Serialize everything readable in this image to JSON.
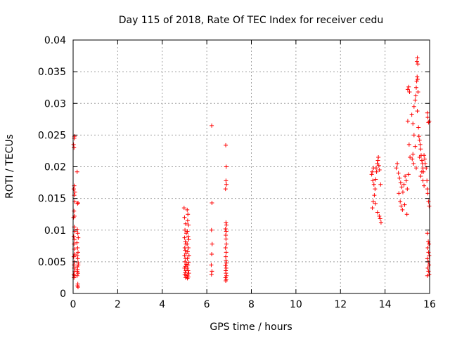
{
  "chart_data": {
    "type": "scatter",
    "title": "Day 115 of 2018, Rate Of TEC Index for receiver cedu",
    "xlabel": "GPS time / hours",
    "ylabel": "ROTI / TECUs",
    "xlim": [
      0,
      16
    ],
    "ylim": [
      0,
      0.04
    ],
    "grid": true,
    "marker": "+",
    "x_ticks": [
      0,
      2,
      4,
      6,
      8,
      10,
      12,
      14,
      16
    ],
    "x_tick_labels": [
      "0",
      "2",
      "4",
      "6",
      "8",
      "10",
      "12",
      "14",
      "16"
    ],
    "y_ticks": [
      0,
      0.005,
      0.01,
      0.015,
      0.02,
      0.025,
      0.03,
      0.035,
      0.04
    ],
    "y_tick_labels": [
      "0",
      "0.005",
      "0.01",
      "0.015",
      "0.02",
      "0.025",
      "0.03",
      "0.035",
      "0.04"
    ],
    "color": "#ff0000",
    "series": [
      {
        "name": "ROTI",
        "points": [
          [
            0.02,
            0.0235
          ],
          [
            0.04,
            0.023
          ],
          [
            0.05,
            0.0245
          ],
          [
            0.06,
            0.0248
          ],
          [
            0.03,
            0.0165
          ],
          [
            0.05,
            0.0155
          ],
          [
            0.07,
            0.0145
          ],
          [
            0.04,
            0.013
          ],
          [
            0.06,
            0.0122
          ],
          [
            0.05,
            0.0105
          ],
          [
            0.07,
            0.0098
          ],
          [
            0.03,
            0.009
          ],
          [
            0.06,
            0.0085
          ],
          [
            0.04,
            0.0078
          ],
          [
            0.05,
            0.007
          ],
          [
            0.07,
            0.0062
          ],
          [
            0.03,
            0.0058
          ],
          [
            0.06,
            0.005
          ],
          [
            0.04,
            0.0045
          ],
          [
            0.05,
            0.004
          ],
          [
            0.07,
            0.0035
          ],
          [
            0.03,
            0.003
          ],
          [
            0.06,
            0.0028
          ],
          [
            0.04,
            0.0025
          ],
          [
            0.05,
            0.017
          ],
          [
            0.08,
            0.016
          ],
          [
            0.02,
            0.012
          ],
          [
            0.18,
            0.0192
          ],
          [
            0.2,
            0.0142
          ],
          [
            0.22,
            0.0143
          ],
          [
            0.19,
            0.0101
          ],
          [
            0.21,
            0.0095
          ],
          [
            0.23,
            0.0088
          ],
          [
            0.17,
            0.008
          ],
          [
            0.2,
            0.0072
          ],
          [
            0.22,
            0.0065
          ],
          [
            0.18,
            0.006
          ],
          [
            0.21,
            0.0055
          ],
          [
            0.23,
            0.0048
          ],
          [
            0.19,
            0.0042
          ],
          [
            0.2,
            0.0038
          ],
          [
            0.22,
            0.0032
          ],
          [
            0.18,
            0.0028
          ],
          [
            0.21,
            0.0015
          ],
          [
            0.2,
            0.0012
          ],
          [
            0.22,
            0.001
          ],
          [
            0.19,
            0.0035
          ],
          [
            0.23,
            0.0045
          ],
          [
            4.98,
            0.0135
          ],
          [
            5.0,
            0.012
          ],
          [
            5.05,
            0.011
          ],
          [
            5.02,
            0.01
          ],
          [
            5.08,
            0.0095
          ],
          [
            5.0,
            0.0088
          ],
          [
            5.04,
            0.0082
          ],
          [
            5.06,
            0.0078
          ],
          [
            5.01,
            0.0072
          ],
          [
            5.03,
            0.0068
          ],
          [
            5.07,
            0.0063
          ],
          [
            5.0,
            0.006
          ],
          [
            5.05,
            0.0055
          ],
          [
            5.02,
            0.005
          ],
          [
            5.08,
            0.0046
          ],
          [
            5.04,
            0.0043
          ],
          [
            5.0,
            0.004
          ],
          [
            5.06,
            0.0036
          ],
          [
            5.03,
            0.0033
          ],
          [
            5.01,
            0.003
          ],
          [
            5.07,
            0.0028
          ],
          [
            5.05,
            0.0025
          ],
          [
            5.12,
            0.0132
          ],
          [
            5.15,
            0.0125
          ],
          [
            5.14,
            0.0115
          ],
          [
            5.18,
            0.0108
          ],
          [
            5.13,
            0.0098
          ],
          [
            5.16,
            0.009
          ],
          [
            5.19,
            0.0085
          ],
          [
            5.12,
            0.0078
          ],
          [
            5.17,
            0.0072
          ],
          [
            5.14,
            0.0066
          ],
          [
            5.2,
            0.006
          ],
          [
            5.13,
            0.0055
          ],
          [
            5.18,
            0.0049
          ],
          [
            5.15,
            0.0045
          ],
          [
            5.12,
            0.004
          ],
          [
            5.16,
            0.0036
          ],
          [
            5.19,
            0.0032
          ],
          [
            5.14,
            0.0029
          ],
          [
            5.17,
            0.0026
          ],
          [
            5.13,
            0.0024
          ],
          [
            6.22,
            0.0265
          ],
          [
            6.23,
            0.0143
          ],
          [
            6.21,
            0.01
          ],
          [
            6.24,
            0.0078
          ],
          [
            6.22,
            0.0062
          ],
          [
            6.2,
            0.0045
          ],
          [
            6.23,
            0.0035
          ],
          [
            6.21,
            0.003
          ],
          [
            6.85,
            0.0234
          ],
          [
            6.87,
            0.02
          ],
          [
            6.86,
            0.0178
          ],
          [
            6.88,
            0.0172
          ],
          [
            6.84,
            0.0165
          ],
          [
            6.86,
            0.0112
          ],
          [
            6.88,
            0.0108
          ],
          [
            6.84,
            0.0102
          ],
          [
            6.87,
            0.0098
          ],
          [
            6.85,
            0.0092
          ],
          [
            6.86,
            0.0086
          ],
          [
            6.88,
            0.0078
          ],
          [
            6.84,
            0.0072
          ],
          [
            6.87,
            0.0065
          ],
          [
            6.85,
            0.0058
          ],
          [
            6.86,
            0.0052
          ],
          [
            6.88,
            0.0048
          ],
          [
            6.84,
            0.0044
          ],
          [
            6.87,
            0.004
          ],
          [
            6.85,
            0.0036
          ],
          [
            6.86,
            0.0032
          ],
          [
            6.88,
            0.0028
          ],
          [
            6.84,
            0.0025
          ],
          [
            6.87,
            0.0022
          ],
          [
            6.85,
            0.002
          ],
          [
            13.4,
            0.0188
          ],
          [
            13.42,
            0.0192
          ],
          [
            13.45,
            0.0178
          ],
          [
            13.48,
            0.0198
          ],
          [
            13.5,
            0.0172
          ],
          [
            13.55,
            0.0165
          ],
          [
            13.58,
            0.018
          ],
          [
            13.65,
            0.0205
          ],
          [
            13.68,
            0.021
          ],
          [
            13.7,
            0.0215
          ],
          [
            13.72,
            0.0202
          ],
          [
            13.75,
            0.0195
          ],
          [
            13.62,
            0.0192
          ],
          [
            13.6,
            0.0198
          ],
          [
            13.8,
            0.0172
          ],
          [
            13.52,
            0.0155
          ],
          [
            13.47,
            0.0145
          ],
          [
            13.43,
            0.0135
          ],
          [
            13.57,
            0.0142
          ],
          [
            13.66,
            0.0128
          ],
          [
            13.74,
            0.0122
          ],
          [
            13.78,
            0.0118
          ],
          [
            13.82,
            0.0112
          ],
          [
            14.5,
            0.0198
          ],
          [
            14.55,
            0.0205
          ],
          [
            14.6,
            0.019
          ],
          [
            14.65,
            0.0182
          ],
          [
            14.7,
            0.0175
          ],
          [
            14.75,
            0.0168
          ],
          [
            14.8,
            0.016
          ],
          [
            14.85,
            0.0172
          ],
          [
            14.9,
            0.0185
          ],
          [
            14.95,
            0.0178
          ],
          [
            15.0,
            0.0165
          ],
          [
            14.62,
            0.0158
          ],
          [
            14.68,
            0.0145
          ],
          [
            14.72,
            0.0138
          ],
          [
            14.78,
            0.0132
          ],
          [
            14.88,
            0.014
          ],
          [
            14.98,
            0.0125
          ],
          [
            15.05,
            0.0188
          ],
          [
            15.02,
            0.0272
          ],
          [
            15.08,
            0.0235
          ],
          [
            15.12,
            0.0215
          ],
          [
            15.02,
            0.0322
          ],
          [
            15.06,
            0.0326
          ],
          [
            15.1,
            0.0318
          ],
          [
            15.2,
            0.0282
          ],
          [
            15.25,
            0.0268
          ],
          [
            15.3,
            0.0295
          ],
          [
            15.35,
            0.0305
          ],
          [
            15.38,
            0.0312
          ],
          [
            15.4,
            0.0325
          ],
          [
            15.42,
            0.0335
          ],
          [
            15.44,
            0.0342
          ],
          [
            15.46,
            0.0338
          ],
          [
            15.48,
            0.0318
          ],
          [
            15.45,
            0.0288
          ],
          [
            15.5,
            0.0262
          ],
          [
            15.52,
            0.0248
          ],
          [
            15.55,
            0.0242
          ],
          [
            15.58,
            0.0235
          ],
          [
            15.6,
            0.0228
          ],
          [
            15.62,
            0.0218
          ],
          [
            15.65,
            0.021
          ],
          [
            15.68,
            0.0205
          ],
          [
            15.7,
            0.0198
          ],
          [
            15.72,
            0.0192
          ],
          [
            15.43,
            0.0366
          ],
          [
            15.45,
            0.0372
          ],
          [
            15.47,
            0.0362
          ],
          [
            15.3,
            0.025
          ],
          [
            15.35,
            0.0232
          ],
          [
            15.25,
            0.022
          ],
          [
            15.22,
            0.0212
          ],
          [
            15.28,
            0.0205
          ],
          [
            15.4,
            0.0198
          ],
          [
            15.55,
            0.0215
          ],
          [
            15.75,
            0.0218
          ],
          [
            15.78,
            0.0212
          ],
          [
            15.8,
            0.0205
          ],
          [
            15.85,
            0.0198
          ],
          [
            15.88,
            0.0178
          ],
          [
            15.9,
            0.0165
          ],
          [
            15.6,
            0.0185
          ],
          [
            15.65,
            0.0192
          ],
          [
            15.7,
            0.0178
          ],
          [
            15.75,
            0.017
          ],
          [
            15.9,
            0.0285
          ],
          [
            15.92,
            0.0278
          ],
          [
            15.95,
            0.027
          ],
          [
            15.98,
            0.0272
          ],
          [
            15.92,
            0.0158
          ],
          [
            15.95,
            0.0145
          ],
          [
            15.98,
            0.0138
          ],
          [
            15.9,
            0.0095
          ],
          [
            15.94,
            0.0082
          ],
          [
            15.97,
            0.0078
          ],
          [
            15.92,
            0.0072
          ],
          [
            15.95,
            0.0065
          ],
          [
            15.98,
            0.006
          ],
          [
            15.9,
            0.0055
          ],
          [
            15.94,
            0.005
          ],
          [
            15.97,
            0.0045
          ],
          [
            15.92,
            0.004
          ],
          [
            15.95,
            0.0035
          ],
          [
            15.98,
            0.003
          ],
          [
            15.9,
            0.0028
          ]
        ]
      }
    ]
  }
}
